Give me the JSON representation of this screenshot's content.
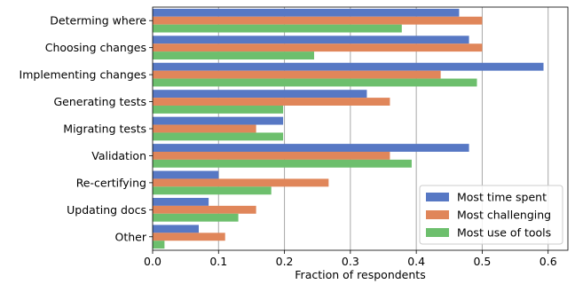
{
  "chart_data": {
    "type": "bar",
    "orientation": "horizontal",
    "categories": [
      "Determing where",
      "Choosing changes",
      "Implementing changes",
      "Generating tests",
      "Migrating tests",
      "Validation",
      "Re-certifying",
      "Updating docs",
      "Other"
    ],
    "series": [
      {
        "name": "Most time spent",
        "color": "#5778c4",
        "values": [
          0.465,
          0.48,
          0.593,
          0.325,
          0.198,
          0.48,
          0.1,
          0.085,
          0.07
        ]
      },
      {
        "name": "Most challenging",
        "color": "#e0865a",
        "values": [
          0.5,
          0.5,
          0.437,
          0.36,
          0.157,
          0.36,
          0.267,
          0.157,
          0.11
        ]
      },
      {
        "name": "Most use of tools",
        "color": "#6dbf6d",
        "values": [
          0.378,
          0.245,
          0.492,
          0.198,
          0.198,
          0.393,
          0.18,
          0.13,
          0.018
        ]
      }
    ],
    "xlabel": "Fraction of respondents",
    "ylabel": "",
    "xlim": [
      0,
      0.63
    ],
    "xticks": [
      0.0,
      0.1,
      0.2,
      0.3,
      0.4,
      0.5,
      0.6
    ],
    "grid": "vertical",
    "legend_position": "bottom-right"
  }
}
